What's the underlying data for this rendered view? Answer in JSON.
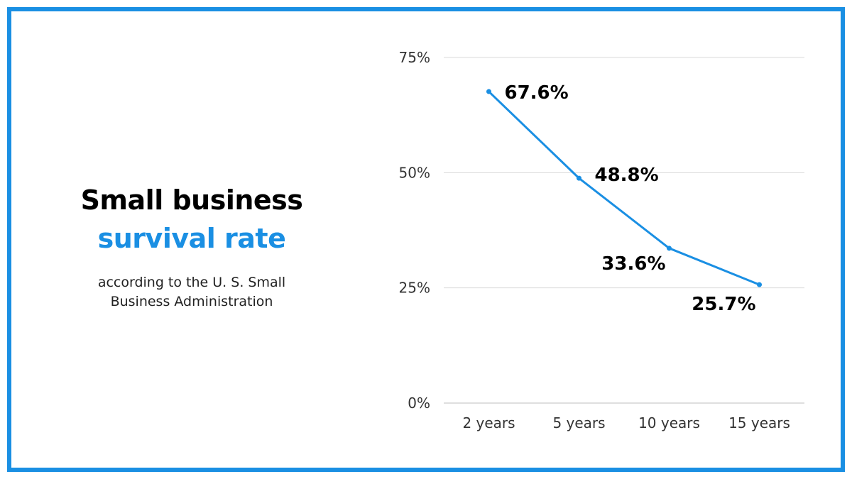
{
  "colors": {
    "frame": "#1a8fe3",
    "accent": "#1a8fe3",
    "line": "#1a8fe3",
    "grid": "#d9d9d9",
    "axis": "#bfbfbf"
  },
  "heading": {
    "line1": "Small business",
    "line2": "survival rate",
    "subtitle_line1": "according to the U. S. Small",
    "subtitle_line2": "Business Administration"
  },
  "chart_data": {
    "type": "line",
    "title": "Small business survival rate",
    "xlabel": "",
    "ylabel": "",
    "categories": [
      "2 years",
      "5 years",
      "10 years",
      "15 years"
    ],
    "series": [
      {
        "name": "Survival rate",
        "values": [
          67.6,
          48.8,
          33.6,
          25.7
        ],
        "labels": [
          "67.6%",
          "48.8%",
          "33.6%",
          "25.7%"
        ]
      }
    ],
    "ylim": [
      0,
      75
    ],
    "yticks": [
      0,
      25,
      50,
      75
    ],
    "ytick_labels": [
      "0%",
      "25%",
      "50%",
      "75%"
    ],
    "grid": true,
    "legend": "none"
  }
}
